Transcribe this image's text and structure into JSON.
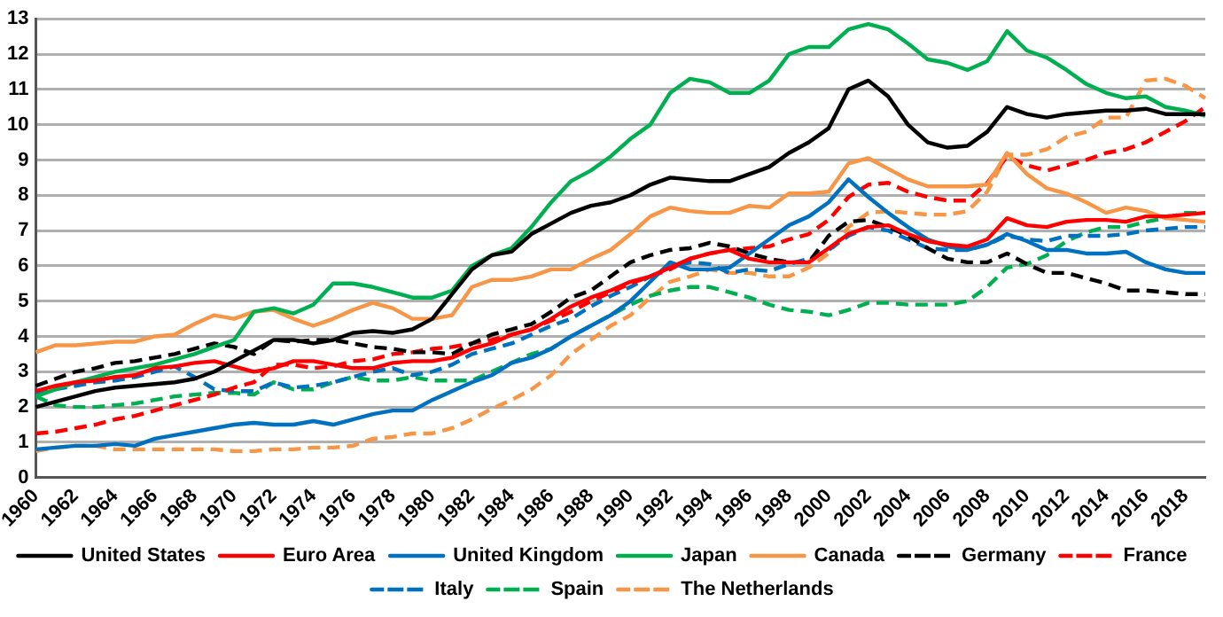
{
  "chart_data": {
    "type": "line",
    "categories": [
      "1960",
      null,
      "1962",
      null,
      "1964",
      null,
      "1966",
      null,
      "1968",
      null,
      "1970",
      null,
      "1972",
      null,
      "1974",
      null,
      "1976",
      null,
      "1978",
      null,
      "1980",
      null,
      "1982",
      null,
      "1984",
      null,
      "1986",
      null,
      "1988",
      null,
      "1990",
      null,
      "1992",
      null,
      "1994",
      null,
      "1996",
      null,
      "1998",
      null,
      "2000",
      null,
      "2002",
      null,
      "2004",
      null,
      "2006",
      null,
      "2008",
      null,
      "2010",
      null,
      "2012",
      null,
      "2014",
      null,
      "2016",
      null,
      "2018",
      null
    ],
    "ylim": [
      0,
      13
    ],
    "yticks": [
      0,
      1,
      2,
      3,
      4,
      5,
      6,
      7,
      8,
      9,
      10,
      11,
      12,
      13
    ],
    "grid": "y",
    "legend": "bottom",
    "marker": "none",
    "series": [
      {
        "name": "United States",
        "color": "#000000",
        "line_style": "solid",
        "values": [
          2.0,
          2.15,
          2.3,
          2.45,
          2.55,
          2.6,
          2.65,
          2.7,
          2.8,
          3.0,
          3.3,
          3.6,
          3.9,
          3.9,
          3.8,
          3.9,
          4.1,
          4.15,
          4.1,
          4.2,
          4.5,
          5.2,
          5.9,
          6.3,
          6.4,
          6.9,
          7.2,
          7.5,
          7.7,
          7.8,
          8.0,
          8.3,
          8.5,
          8.45,
          8.4,
          8.4,
          8.6,
          8.8,
          9.2,
          9.5,
          9.9,
          11.0,
          11.25,
          10.8,
          10.0,
          9.5,
          9.35,
          9.4,
          9.8,
          10.5,
          10.3,
          10.2,
          10.3,
          10.35,
          10.4,
          10.4,
          10.45,
          10.3,
          10.3,
          10.3
        ]
      },
      {
        "name": "Euro Area",
        "color": "#ff0000",
        "line_style": "solid",
        "values": [
          2.45,
          2.6,
          2.7,
          2.75,
          2.85,
          2.9,
          3.1,
          3.15,
          3.25,
          3.3,
          3.15,
          3.0,
          3.1,
          3.3,
          3.3,
          3.2,
          3.1,
          3.1,
          3.25,
          3.3,
          3.3,
          3.4,
          3.65,
          3.8,
          4.05,
          4.2,
          4.5,
          4.85,
          5.1,
          5.3,
          5.55,
          5.7,
          5.95,
          6.2,
          6.35,
          6.45,
          6.2,
          6.1,
          6.1,
          6.1,
          6.5,
          6.9,
          7.1,
          7.15,
          6.9,
          6.7,
          6.6,
          6.55,
          6.75,
          7.35,
          7.15,
          7.1,
          7.25,
          7.3,
          7.3,
          7.25,
          7.4,
          7.4,
          7.45,
          7.5
        ]
      },
      {
        "name": "United Kingdom",
        "color": "#0070c0",
        "line_style": "solid",
        "values": [
          0.8,
          0.85,
          0.9,
          0.9,
          0.95,
          0.9,
          1.1,
          1.2,
          1.3,
          1.4,
          1.5,
          1.55,
          1.5,
          1.5,
          1.6,
          1.5,
          1.65,
          1.8,
          1.9,
          1.9,
          2.2,
          2.45,
          2.7,
          2.9,
          3.25,
          3.4,
          3.65,
          4.0,
          4.3,
          4.6,
          5.0,
          5.55,
          6.1,
          5.9,
          5.9,
          5.95,
          6.35,
          6.75,
          7.15,
          7.4,
          7.8,
          8.45,
          7.95,
          7.5,
          7.1,
          6.75,
          6.55,
          6.45,
          6.6,
          6.9,
          6.7,
          6.45,
          6.45,
          6.35,
          6.35,
          6.4,
          6.1,
          5.9,
          5.8,
          5.8
        ]
      },
      {
        "name": "Japan",
        "color": "#00b050",
        "line_style": "solid",
        "values": [
          2.3,
          2.5,
          2.7,
          2.85,
          3.0,
          3.1,
          3.2,
          3.35,
          3.5,
          3.7,
          3.9,
          4.7,
          4.8,
          4.65,
          4.9,
          5.5,
          5.5,
          5.4,
          5.25,
          5.1,
          5.1,
          5.3,
          6.0,
          6.3,
          6.5,
          7.1,
          7.8,
          8.4,
          8.7,
          9.1,
          9.6,
          10.0,
          10.9,
          11.3,
          11.2,
          10.9,
          10.9,
          11.25,
          12.0,
          12.2,
          12.2,
          12.7,
          12.85,
          12.7,
          12.3,
          11.85,
          11.75,
          11.55,
          11.8,
          12.65,
          12.1,
          11.9,
          11.55,
          11.15,
          10.9,
          10.75,
          10.8,
          10.5,
          10.4,
          10.25
        ]
      },
      {
        "name": "Canada",
        "color": "#f79646",
        "line_style": "solid",
        "values": [
          3.55,
          3.75,
          3.75,
          3.8,
          3.85,
          3.85,
          4.0,
          4.05,
          4.35,
          4.6,
          4.5,
          4.7,
          4.75,
          4.5,
          4.3,
          4.5,
          4.75,
          4.95,
          4.8,
          4.5,
          4.5,
          4.6,
          5.4,
          5.6,
          5.6,
          5.7,
          5.9,
          5.9,
          6.2,
          6.45,
          6.9,
          7.4,
          7.65,
          7.55,
          7.5,
          7.5,
          7.7,
          7.65,
          8.05,
          8.05,
          8.1,
          8.9,
          9.05,
          8.75,
          8.45,
          8.25,
          8.25,
          8.25,
          8.3,
          9.2,
          8.6,
          8.2,
          8.05,
          7.8,
          7.5,
          7.65,
          7.55,
          7.35,
          7.3,
          7.25
        ]
      },
      {
        "name": "Germany",
        "color": "#000000",
        "line_style": "dashed",
        "values": [
          2.6,
          2.8,
          3.0,
          3.1,
          3.25,
          3.3,
          3.4,
          3.5,
          3.65,
          3.8,
          3.7,
          3.5,
          3.9,
          3.85,
          3.9,
          3.9,
          3.8,
          3.7,
          3.65,
          3.55,
          3.55,
          3.5,
          3.8,
          4.05,
          4.2,
          4.35,
          4.7,
          5.1,
          5.3,
          5.7,
          6.1,
          6.3,
          6.45,
          6.5,
          6.65,
          6.55,
          6.35,
          6.2,
          6.1,
          6.1,
          6.85,
          7.25,
          7.3,
          7.1,
          6.85,
          6.5,
          6.2,
          6.1,
          6.1,
          6.35,
          6.05,
          5.8,
          5.8,
          5.65,
          5.5,
          5.3,
          5.3,
          5.25,
          5.2,
          5.2
        ]
      },
      {
        "name": "France",
        "color": "#ff0000",
        "line_style": "dashed",
        "values": [
          1.25,
          1.3,
          1.4,
          1.5,
          1.65,
          1.75,
          1.9,
          2.05,
          2.2,
          2.35,
          2.55,
          2.7,
          3.2,
          3.2,
          3.1,
          3.15,
          3.3,
          3.35,
          3.5,
          3.55,
          3.65,
          3.7,
          3.8,
          3.9,
          4.05,
          4.2,
          4.45,
          4.7,
          5.0,
          5.25,
          5.5,
          5.7,
          5.9,
          6.2,
          6.35,
          6.45,
          6.5,
          6.55,
          6.75,
          6.9,
          7.3,
          7.95,
          8.3,
          8.35,
          8.1,
          7.95,
          7.85,
          7.85,
          8.35,
          9.1,
          8.85,
          8.7,
          8.85,
          9.0,
          9.2,
          9.3,
          9.5,
          9.8,
          10.1,
          10.5
        ]
      },
      {
        "name": "Italy",
        "color": "#0070c0",
        "line_style": "dashed",
        "values": [
          2.35,
          2.5,
          2.6,
          2.7,
          2.75,
          2.85,
          3.0,
          3.15,
          2.85,
          2.5,
          2.45,
          2.45,
          2.7,
          2.55,
          2.6,
          2.7,
          2.85,
          3.0,
          3.1,
          2.9,
          3.0,
          3.2,
          3.5,
          3.65,
          3.8,
          4.05,
          4.3,
          4.5,
          4.85,
          5.15,
          5.4,
          5.7,
          5.95,
          6.1,
          6.05,
          5.8,
          5.9,
          5.85,
          6.05,
          6.2,
          6.45,
          6.85,
          7.1,
          7.0,
          6.75,
          6.5,
          6.45,
          6.45,
          6.6,
          6.85,
          6.75,
          6.7,
          6.85,
          6.85,
          6.85,
          6.9,
          7.0,
          7.05,
          7.1,
          7.1
        ]
      },
      {
        "name": "Spain",
        "color": "#00b050",
        "line_style": "dashed",
        "values": [
          2.3,
          2.05,
          2.0,
          2.0,
          2.05,
          2.1,
          2.2,
          2.3,
          2.35,
          2.4,
          2.4,
          2.35,
          2.7,
          2.5,
          2.5,
          2.7,
          2.85,
          2.75,
          2.75,
          2.85,
          2.75,
          2.75,
          2.75,
          3.0,
          3.25,
          3.5,
          3.65,
          4.0,
          4.3,
          4.6,
          4.9,
          5.15,
          5.3,
          5.4,
          5.4,
          5.25,
          5.1,
          4.9,
          4.75,
          4.7,
          4.6,
          4.75,
          4.95,
          4.95,
          4.9,
          4.9,
          4.9,
          5.0,
          5.4,
          5.95,
          6.05,
          6.3,
          6.7,
          6.95,
          7.1,
          7.1,
          7.25,
          7.35,
          7.5,
          7.5
        ]
      },
      {
        "name": "The Netherlands",
        "color": "#f79646",
        "line_style": "dashed",
        "values": [
          0.75,
          0.85,
          0.9,
          0.9,
          0.8,
          0.8,
          0.8,
          0.8,
          0.8,
          0.8,
          0.75,
          0.75,
          0.8,
          0.8,
          0.85,
          0.85,
          0.9,
          1.1,
          1.15,
          1.25,
          1.25,
          1.4,
          1.65,
          1.95,
          2.2,
          2.5,
          2.9,
          3.5,
          3.9,
          4.3,
          4.6,
          5.1,
          5.55,
          5.7,
          5.9,
          5.8,
          5.8,
          5.7,
          5.7,
          5.95,
          6.35,
          7.1,
          7.5,
          7.55,
          7.5,
          7.45,
          7.45,
          7.55,
          8.1,
          9.15,
          9.15,
          9.3,
          9.65,
          9.8,
          10.2,
          10.2,
          11.25,
          11.3,
          11.1,
          10.75
        ]
      }
    ]
  }
}
